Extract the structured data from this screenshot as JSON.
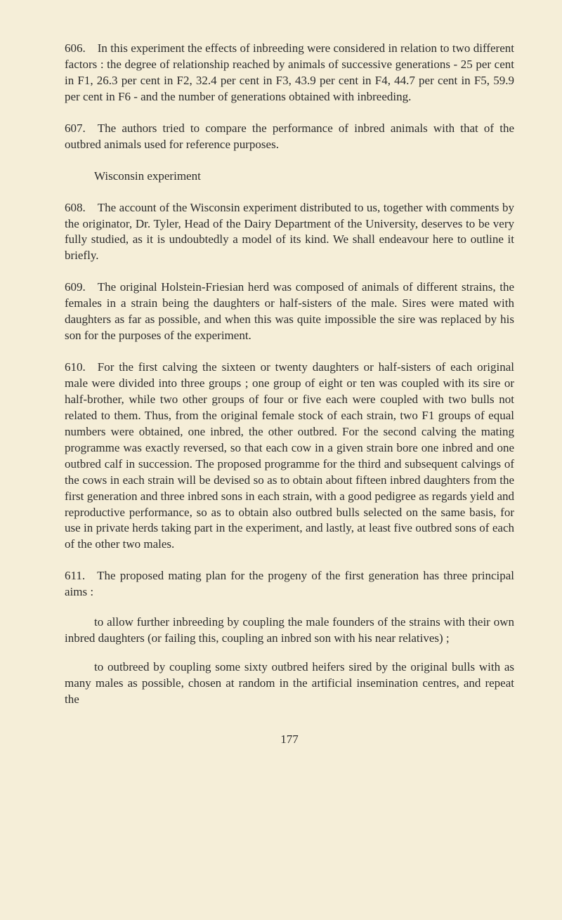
{
  "paragraphs": {
    "p606": "606. In this experiment the effects of inbreeding were con­sidered in relation to two different factors : the degree of relationship reached by animals of successive generations - 25 per cent in F1, 26.3 per cent in F2, 32.4 per cent in F3, 43.9 per cent in F4, 44.7 per cent in F5, 59.9 per cent in F6 - and the number of generations obtained with inbreeding.",
    "p607": "607. The authors tried to compare the performance of inbred animals with that of the outbred animals used for reference purposes.",
    "subhead": "Wisconsin experiment",
    "p608": "608. The account of the Wisconsin experiment distributed to us, together with comments by the originator, Dr. Tyler, Head of the Dairy Department of the University, deserves to be very fully studied, as it is undoubtedly a model of its kind. We shall endeavour here to outline it briefly.",
    "p609": "609. The original Holstein-Friesian herd was composed of animals of different strains, the females in a strain being the daughters or half-sisters of the male. Sires were mated with daughters as far as possible, and when this was quite impossible the sire was replaced by his son for the purposes of the experi­ment.",
    "p610": "610. For the first calving the sixteen or twenty daughters or half-sisters of each original male were divided into three groups ; one group of eight or ten was coupled with its sire or half-brother, while two other groups of four or five each were coupled with two bulls not related to them. Thus, from the original female stock of each strain, two F1 groups of equal numbers were obtained, one inbred, the other outbred. For the second calving the mating programme was exactly reversed, so that each cow in a given strain bore one inbred and one outbred calf in succession. The proposed programme for the third and subsequent calvings of the cows in each strain will be devised so as to obtain about fifteen inbred daughters from the first generation and three inbred sons in each strain, with a good pedigree as regards yield and reproductive performance, so as to obtain also outbred bulls selected on the same basis, for use in private herds taking part in the experiment, and lastly, at least five outbred sons of each of the other two males.",
    "p611": "611. The proposed mating plan for the progeny of the first generation has three principal aims :",
    "aim1": "to allow further inbreeding by coupling the male founders of the strains with their own inbred daughters (or failing this, coupling an inbred son with his near relatives) ;",
    "aim2": "to outbreed by coupling some sixty outbred heifers sired by the original bulls with as many males as possible, chosen at random in the artificial insemination centres, and repeat the"
  },
  "pageNumber": "177"
}
